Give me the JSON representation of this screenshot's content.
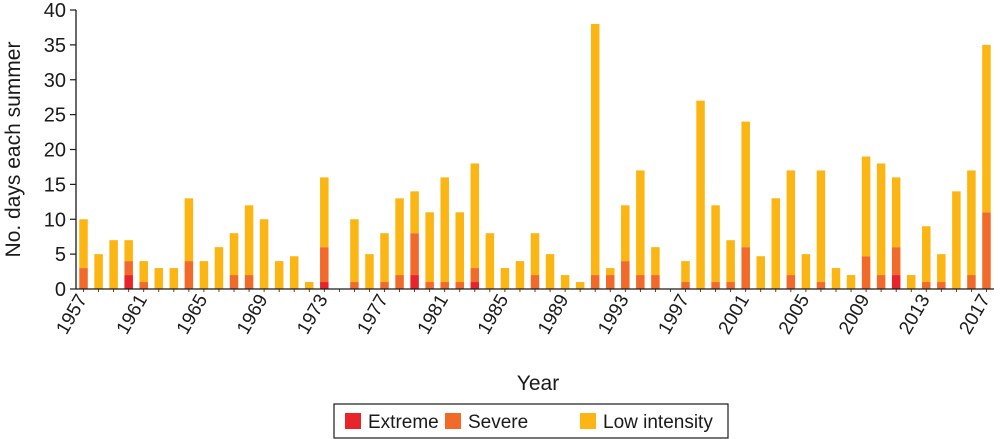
{
  "chart_data": {
    "type": "bar",
    "stacked": true,
    "xlabel": "Year",
    "ylabel": "No. days each summer",
    "ylim": [
      0,
      40
    ],
    "yticks": [
      "0",
      "5",
      "10",
      "15",
      "20",
      "25",
      "30",
      "35",
      "40"
    ],
    "xtick_labels": [
      "1957",
      "1961",
      "1965",
      "1969",
      "1973",
      "1977",
      "1981",
      "1985",
      "1989",
      "1993",
      "1997",
      "2001",
      "2005",
      "2009",
      "2013",
      "2017"
    ],
    "grid": false,
    "legend_position": "bottom",
    "categories": [
      1957,
      1958,
      1959,
      1960,
      1961,
      1962,
      1963,
      1964,
      1965,
      1966,
      1967,
      1968,
      1969,
      1970,
      1971,
      1972,
      1973,
      1974,
      1975,
      1976,
      1977,
      1978,
      1979,
      1980,
      1981,
      1982,
      1983,
      1984,
      1985,
      1986,
      1987,
      1988,
      1989,
      1990,
      1991,
      1992,
      1993,
      1994,
      1995,
      1996,
      1997,
      1998,
      1999,
      2000,
      2001,
      2002,
      2003,
      2004,
      2005,
      2006,
      2007,
      2008,
      2009,
      2010,
      2011,
      2012,
      2013,
      2014,
      2015,
      2016,
      2017
    ],
    "series": [
      {
        "name": "Extreme",
        "color": "#e8242a",
        "values": [
          0,
          0,
          0,
          2,
          0,
          0,
          0,
          0,
          0,
          0,
          0,
          0,
          0,
          0,
          0,
          0,
          1,
          0,
          0,
          0,
          0,
          0,
          2,
          0,
          0,
          0,
          1,
          0,
          0,
          0,
          0,
          0,
          0,
          0,
          0,
          0,
          0,
          0,
          0,
          0,
          0,
          0,
          0,
          0,
          0,
          0,
          0,
          0,
          0,
          0,
          0,
          0,
          0,
          0,
          2,
          0,
          0,
          0,
          0,
          0,
          0
        ]
      },
      {
        "name": "Severe",
        "color": "#f26a2a",
        "values": [
          3,
          0,
          0,
          2,
          1,
          0,
          0,
          4,
          0,
          0,
          2,
          2,
          0,
          0,
          0,
          0,
          5,
          0,
          1,
          0,
          1,
          2,
          6,
          1,
          1,
          1,
          2,
          0,
          0,
          0,
          2,
          0,
          0,
          0,
          2,
          2,
          4,
          2,
          2,
          0,
          1,
          0,
          1,
          1,
          6,
          0,
          0,
          2,
          0,
          1,
          0,
          0,
          4.7,
          2,
          4,
          0,
          1,
          1,
          0,
          2,
          11
        ]
      },
      {
        "name": "Low intensity",
        "color": "#fbb614",
        "values": [
          7,
          5,
          7,
          3,
          3,
          3,
          3,
          9,
          4,
          6,
          6,
          10,
          10,
          4,
          4.7,
          1,
          10,
          0,
          9,
          5,
          7,
          11,
          6,
          10,
          15,
          10,
          15,
          8,
          3,
          4,
          6,
          5,
          2,
          1,
          36,
          1,
          8,
          15,
          4,
          0,
          3,
          27,
          11,
          6,
          18,
          4.7,
          13,
          15,
          5,
          16,
          3,
          2,
          14.3,
          16,
          10,
          2,
          8,
          4,
          14,
          15,
          24
        ]
      }
    ]
  }
}
